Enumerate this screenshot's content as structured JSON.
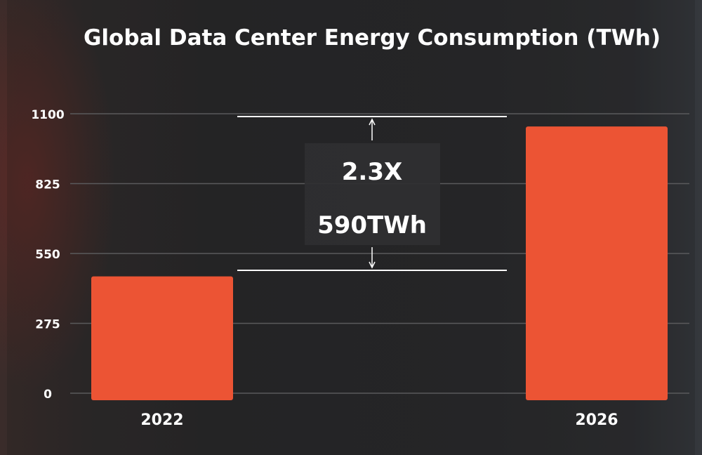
{
  "colors": {
    "bar": "#ec5434",
    "grid": "#5a5a5c",
    "text": "#ffffff",
    "annotation_box": "#2f2f31"
  },
  "chart_data": {
    "type": "bar",
    "title": "Global Data Center Energy Consumption (TWh)",
    "categories": [
      "2022",
      "2026"
    ],
    "values": [
      460,
      1050
    ],
    "ylim": [
      0,
      1100
    ],
    "yticks": [
      0,
      275,
      550,
      825,
      1100
    ],
    "grid": true,
    "legend": "none",
    "annotation": {
      "lines": [
        "2.3X",
        "590TWh"
      ],
      "from_value": 460,
      "to_value": 1050
    }
  }
}
